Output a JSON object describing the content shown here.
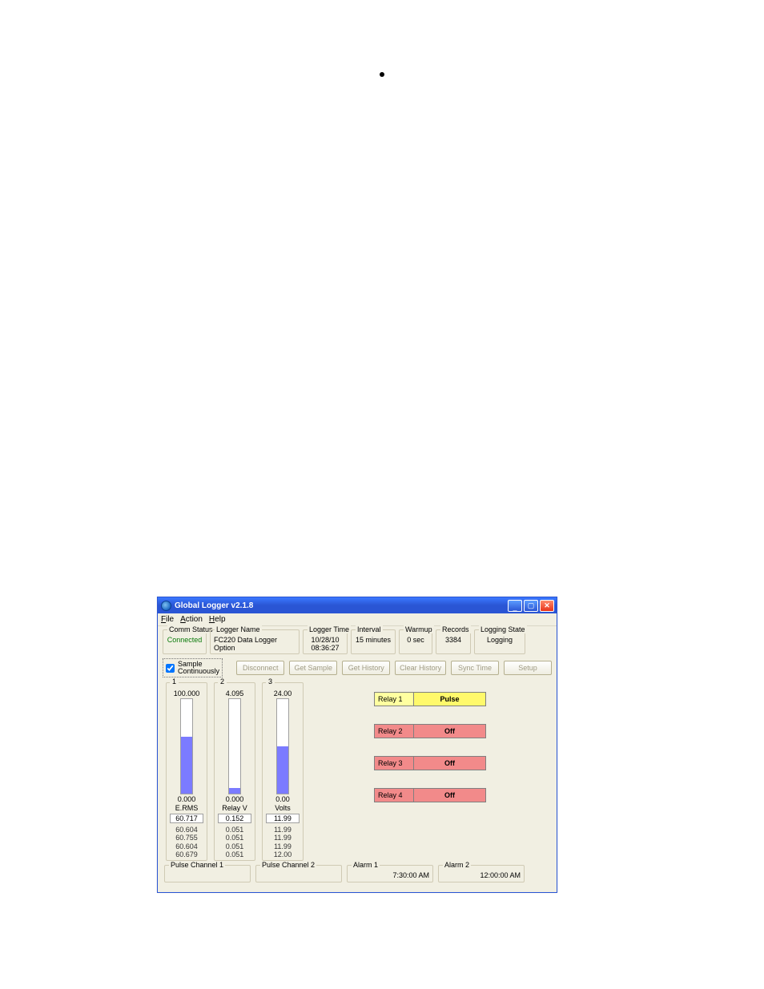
{
  "window": {
    "title": "Global Logger v2.1.8"
  },
  "menu": {
    "file": "File",
    "action": "Action",
    "help": "Help"
  },
  "status": {
    "comm_label": "Comm Status",
    "comm_value": "Connected",
    "name_label": "Logger Name",
    "name_value": "FC220 Data Logger Option",
    "time_label": "Logger Time",
    "time_value_date": "10/28/10",
    "time_value_time": "08:36:27",
    "interval_label": "Interval",
    "interval_value": "15 minutes",
    "warmup_label": "Warmup",
    "warmup_value": "0 sec",
    "records_label": "Records",
    "records_value": "3384",
    "logstate_label": "Logging State",
    "logstate_value": "Logging"
  },
  "toolbar": {
    "sample_label": "Sample\nContinuously",
    "sample_checked": true,
    "disconnect": "Disconnect",
    "get_sample": "Get Sample",
    "get_history": "Get History",
    "clear_history": "Clear History",
    "sync_time": "Sync Time",
    "setup": "Setup"
  },
  "channels": [
    {
      "idx": "1",
      "max": "100.000",
      "min": "0.000",
      "label": "E.RMS",
      "current": "60.717",
      "fill_pct": 60,
      "fill_color": "#7b7bff",
      "history": [
        "60.604",
        "60.755",
        "60.604",
        "60.679"
      ]
    },
    {
      "idx": "2",
      "max": "4.095",
      "min": "0.000",
      "label": "Relay V",
      "current": "0.152",
      "fill_pct": 6,
      "fill_color": "#7b7bff",
      "history": [
        "0.051",
        "0.051",
        "0.051",
        "0.051"
      ]
    },
    {
      "idx": "3",
      "max": "24.00",
      "min": "0.00",
      "label": "Volts",
      "current": "11.99",
      "fill_pct": 50,
      "fill_color": "#7b7bff",
      "history": [
        "11.99",
        "11.99",
        "11.99",
        "12.00"
      ]
    }
  ],
  "relays": [
    {
      "label": "Relay 1",
      "state": "Pulse",
      "type": "pulse",
      "label_bg": "#ffffa0",
      "state_bg": "#fff96b"
    },
    {
      "label": "Relay 2",
      "state": "Off",
      "type": "off",
      "label_bg": "#f28a8a",
      "state_bg": "#f28a8a"
    },
    {
      "label": "Relay 3",
      "state": "Off",
      "type": "off",
      "label_bg": "#f28a8a",
      "state_bg": "#f28a8a"
    },
    {
      "label": "Relay 4",
      "state": "Off",
      "type": "off",
      "label_bg": "#f28a8a",
      "state_bg": "#f28a8a"
    }
  ],
  "bottom": {
    "pulse1_label": "Pulse Channel 1",
    "pulse1_value": "",
    "pulse2_label": "Pulse Channel 2",
    "pulse2_value": "",
    "alarm1_label": "Alarm 1",
    "alarm1_value": "7:30:00 AM",
    "alarm2_label": "Alarm 2",
    "alarm2_value": "12:00:00 AM"
  },
  "colors": {
    "window_bg": "#f1efe2",
    "border": "#cfcab4",
    "titlebar_from": "#3b78ff",
    "titlebar_to": "#2a55d4",
    "gauge_fill": "#7b7bff",
    "relay_pulse_bg": "#fff96b",
    "relay_off_bg": "#f28a8a",
    "connected_text": "#0a7a0a"
  }
}
